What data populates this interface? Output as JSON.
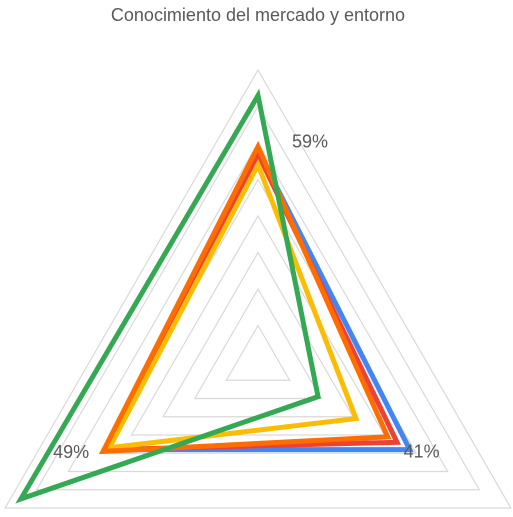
{
  "chart_data": {
    "type": "radar",
    "categories": [
      "Conocimiento del mercado y entorno",
      null,
      null
    ],
    "series": [
      {
        "color": "#4285f4",
        "values": [
          58,
          48,
          48
        ]
      },
      {
        "color": "#ea4335",
        "values": [
          57,
          44,
          48
        ]
      },
      {
        "color": "#fbbc04",
        "values": [
          54,
          31,
          47
        ]
      },
      {
        "color": "#ff6d01",
        "values": [
          59,
          41,
          49
        ],
        "value_labels": [
          "59%",
          "41%",
          "49%"
        ]
      },
      {
        "color": "#34a853",
        "values": [
          73,
          19,
          75
        ]
      }
    ],
    "ylim": [
      0,
      80
    ],
    "yticks": [
      0,
      10,
      20,
      30,
      40,
      50,
      60,
      70,
      80
    ],
    "grid": true
  }
}
